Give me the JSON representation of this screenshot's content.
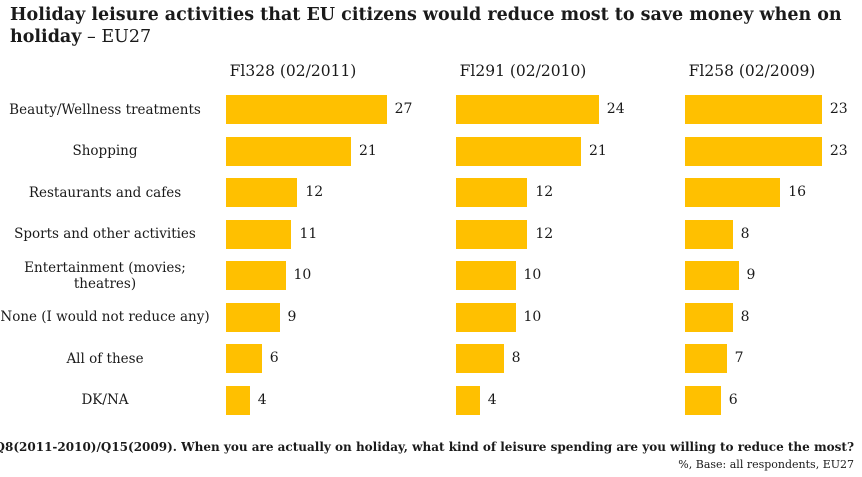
{
  "title_bold": "Holiday leisure activities that EU citizens would reduce most to save money when on holiday",
  "title_suffix": " – EU27",
  "footer_question": "Q8(2011-2010)/Q15(2009). When you are actually on holiday, what kind of leisure spending are you willing to reduce the most?",
  "footer_base": "%, Base: all respondents, EU27",
  "colors": {
    "bar": "#FFC000"
  },
  "chart_data": [
    {
      "type": "bar",
      "orientation": "horizontal",
      "title": "Fl328 (02/2011)",
      "categories": [
        "Beauty/Wellness treatments",
        "Shopping",
        "Restaurants and cafes",
        "Sports and other activities",
        "Entertainment (movies; theatres)",
        "None (I would not reduce any)",
        "All of these",
        "DK/NA"
      ],
      "values": [
        27,
        21,
        12,
        11,
        10,
        9,
        6,
        4
      ],
      "unit": "%"
    },
    {
      "type": "bar",
      "orientation": "horizontal",
      "title": "Fl291 (02/2010)",
      "categories": [
        "Beauty/Wellness treatments",
        "Shopping",
        "Restaurants and cafes",
        "Sports and other activities",
        "Entertainment (movies; theatres)",
        "None (I would not reduce any)",
        "All of these",
        "DK/NA"
      ],
      "values": [
        24,
        21,
        12,
        12,
        10,
        10,
        8,
        4
      ],
      "unit": "%"
    },
    {
      "type": "bar",
      "orientation": "horizontal",
      "title": "Fl258 (02/2009)",
      "categories": [
        "Beauty/Wellness treatments",
        "Shopping",
        "Restaurants and cafes",
        "Sports and other activities",
        "Entertainment (movies; theatres)",
        "None (I would not reduce any)",
        "All of these",
        "DK/NA"
      ],
      "values": [
        23,
        23,
        16,
        8,
        9,
        8,
        7,
        6
      ],
      "unit": "%"
    }
  ]
}
